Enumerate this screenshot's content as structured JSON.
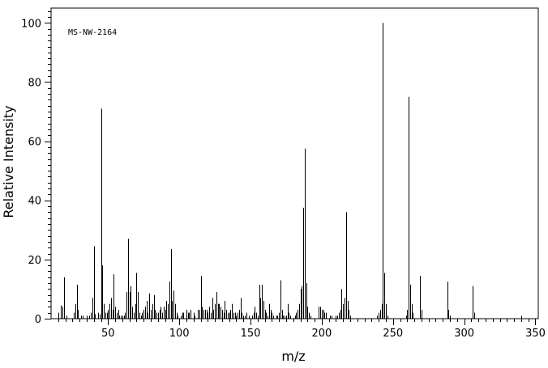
{
  "chart_data": {
    "type": "bar",
    "annotation": "MS-NW-2164",
    "xlabel": "m/z",
    "ylabel": "Relative Intensity",
    "xlim": [
      10,
      352
    ],
    "ylim": [
      0,
      105
    ],
    "xticks": [
      50,
      100,
      150,
      200,
      250,
      300,
      350
    ],
    "yticks": [
      0,
      20,
      40,
      60,
      80,
      100
    ],
    "grid": false,
    "peaks": [
      [
        15,
        2
      ],
      [
        17,
        4.5
      ],
      [
        18,
        4
      ],
      [
        19,
        14
      ],
      [
        21,
        1
      ],
      [
        26,
        2
      ],
      [
        27,
        5
      ],
      [
        28,
        11.5
      ],
      [
        29,
        3
      ],
      [
        31,
        1
      ],
      [
        32,
        1
      ],
      [
        35,
        1
      ],
      [
        37,
        1
      ],
      [
        38,
        2
      ],
      [
        39,
        7
      ],
      [
        40,
        24.5
      ],
      [
        41,
        1.5
      ],
      [
        43,
        2
      ],
      [
        44,
        1.5
      ],
      [
        45,
        71
      ],
      [
        46,
        18
      ],
      [
        47,
        5
      ],
      [
        48,
        2
      ],
      [
        49,
        2
      ],
      [
        50,
        3
      ],
      [
        51,
        5
      ],
      [
        52,
        7
      ],
      [
        53,
        3
      ],
      [
        54,
        15
      ],
      [
        55,
        4
      ],
      [
        56,
        2
      ],
      [
        57,
        3
      ],
      [
        58,
        1
      ],
      [
        59,
        1
      ],
      [
        60,
        1
      ],
      [
        61,
        1
      ],
      [
        62,
        2
      ],
      [
        63,
        9
      ],
      [
        64,
        27
      ],
      [
        65,
        9
      ],
      [
        66,
        11
      ],
      [
        67,
        4
      ],
      [
        68,
        2
      ],
      [
        69,
        5
      ],
      [
        70,
        15.5
      ],
      [
        71,
        9
      ],
      [
        72,
        2
      ],
      [
        73,
        1
      ],
      [
        74,
        2
      ],
      [
        75,
        3
      ],
      [
        76,
        4
      ],
      [
        77,
        6
      ],
      [
        78,
        2
      ],
      [
        79,
        8.5
      ],
      [
        80,
        3
      ],
      [
        81,
        5
      ],
      [
        82,
        8
      ],
      [
        83,
        3
      ],
      [
        84,
        2
      ],
      [
        85,
        2
      ],
      [
        86,
        3
      ],
      [
        87,
        4
      ],
      [
        88,
        2
      ],
      [
        89,
        4
      ],
      [
        90,
        3
      ],
      [
        91,
        6
      ],
      [
        92,
        5
      ],
      [
        93,
        12.5
      ],
      [
        94,
        23.5
      ],
      [
        95,
        6
      ],
      [
        96,
        9.5
      ],
      [
        97,
        5
      ],
      [
        98,
        2
      ],
      [
        99,
        1
      ],
      [
        101,
        1
      ],
      [
        102,
        2
      ],
      [
        103,
        2
      ],
      [
        105,
        3
      ],
      [
        106,
        2
      ],
      [
        107,
        2
      ],
      [
        108,
        3
      ],
      [
        110,
        2
      ],
      [
        111,
        1
      ],
      [
        113,
        3
      ],
      [
        114,
        3
      ],
      [
        115,
        14.5
      ],
      [
        116,
        4
      ],
      [
        117,
        3
      ],
      [
        118,
        3
      ],
      [
        119,
        3
      ],
      [
        120,
        2
      ],
      [
        121,
        4
      ],
      [
        122,
        2
      ],
      [
        123,
        7
      ],
      [
        124,
        3
      ],
      [
        125,
        5
      ],
      [
        126,
        9
      ],
      [
        127,
        5
      ],
      [
        128,
        5
      ],
      [
        129,
        4
      ],
      [
        130,
        3
      ],
      [
        131,
        2
      ],
      [
        132,
        6
      ],
      [
        133,
        3
      ],
      [
        134,
        2
      ],
      [
        135,
        2
      ],
      [
        136,
        3
      ],
      [
        137,
        5
      ],
      [
        138,
        2
      ],
      [
        139,
        2
      ],
      [
        140,
        1
      ],
      [
        141,
        2
      ],
      [
        142,
        3
      ],
      [
        143,
        7
      ],
      [
        144,
        2
      ],
      [
        145,
        1
      ],
      [
        146,
        1
      ],
      [
        147,
        2
      ],
      [
        149,
        1
      ],
      [
        151,
        1
      ],
      [
        152,
        2
      ],
      [
        153,
        4
      ],
      [
        154,
        2
      ],
      [
        155,
        1
      ],
      [
        156,
        11.5
      ],
      [
        157,
        7
      ],
      [
        158,
        11.5
      ],
      [
        159,
        6
      ],
      [
        160,
        3
      ],
      [
        161,
        2
      ],
      [
        162,
        1
      ],
      [
        163,
        5
      ],
      [
        164,
        3
      ],
      [
        165,
        2
      ],
      [
        166,
        1
      ],
      [
        168,
        1
      ],
      [
        169,
        1
      ],
      [
        170,
        2
      ],
      [
        171,
        13
      ],
      [
        172,
        3
      ],
      [
        173,
        1
      ],
      [
        174,
        1
      ],
      [
        175,
        1
      ],
      [
        176,
        5
      ],
      [
        177,
        2
      ],
      [
        178,
        1
      ],
      [
        181,
        1
      ],
      [
        182,
        2
      ],
      [
        183,
        3
      ],
      [
        184,
        5
      ],
      [
        185,
        10
      ],
      [
        186,
        11
      ],
      [
        187,
        37.5
      ],
      [
        188,
        57.5
      ],
      [
        189,
        12
      ],
      [
        190,
        4
      ],
      [
        191,
        2
      ],
      [
        192,
        1
      ],
      [
        198,
        4
      ],
      [
        199,
        4
      ],
      [
        200,
        3
      ],
      [
        201,
        3
      ],
      [
        202,
        2
      ],
      [
        203,
        2
      ],
      [
        206,
        1
      ],
      [
        207,
        1
      ],
      [
        210,
        1
      ],
      [
        211,
        1
      ],
      [
        212,
        2
      ],
      [
        213,
        3
      ],
      [
        214,
        10
      ],
      [
        215,
        5
      ],
      [
        216,
        7
      ],
      [
        217,
        36
      ],
      [
        218,
        6
      ],
      [
        219,
        3
      ],
      [
        220,
        1
      ],
      [
        239,
        1
      ],
      [
        240,
        2
      ],
      [
        241,
        3
      ],
      [
        242,
        5
      ],
      [
        243,
        100
      ],
      [
        244,
        15.5
      ],
      [
        245,
        5
      ],
      [
        246,
        1
      ],
      [
        259,
        1
      ],
      [
        260,
        3
      ],
      [
        261,
        75
      ],
      [
        262,
        11.5
      ],
      [
        263,
        5
      ],
      [
        264,
        2
      ],
      [
        269,
        14.5
      ],
      [
        270,
        3
      ],
      [
        288,
        12.5
      ],
      [
        289,
        3
      ],
      [
        290,
        1
      ],
      [
        306,
        11
      ],
      [
        307,
        2
      ],
      [
        340,
        1
      ]
    ]
  }
}
